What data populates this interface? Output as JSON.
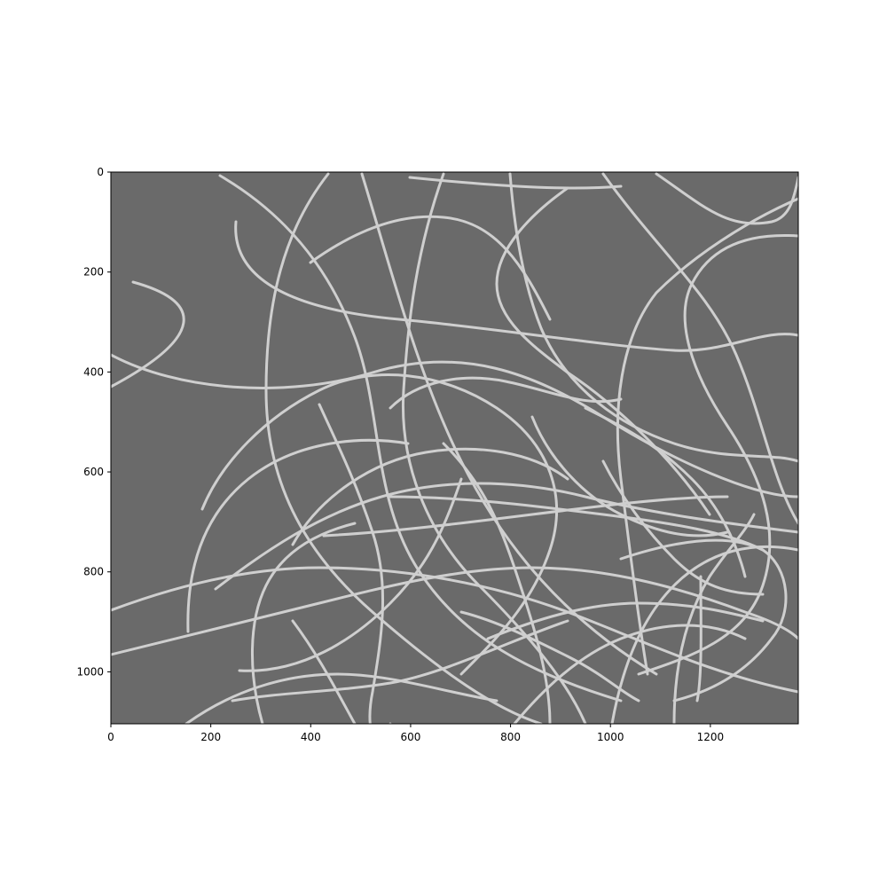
{
  "figure": {
    "image": {
      "description_icon": "microscopy-fibers-image",
      "background_color": "#6a6a6a",
      "fiber_color": "#d8d8d8",
      "extent": {
        "x_max": 1376,
        "y_max": 1104
      }
    },
    "x_axis": {
      "ticks": [
        {
          "value": 0,
          "label": "0"
        },
        {
          "value": 200,
          "label": "200"
        },
        {
          "value": 400,
          "label": "400"
        },
        {
          "value": 600,
          "label": "600"
        },
        {
          "value": 800,
          "label": "800"
        },
        {
          "value": 1000,
          "label": "1000"
        },
        {
          "value": 1200,
          "label": "1200"
        }
      ]
    },
    "y_axis": {
      "ticks": [
        {
          "value": 0,
          "label": "0"
        },
        {
          "value": 200,
          "label": "200"
        },
        {
          "value": 400,
          "label": "400"
        },
        {
          "value": 600,
          "label": "600"
        },
        {
          "value": 800,
          "label": "800"
        },
        {
          "value": 1000,
          "label": "1000"
        }
      ]
    }
  }
}
